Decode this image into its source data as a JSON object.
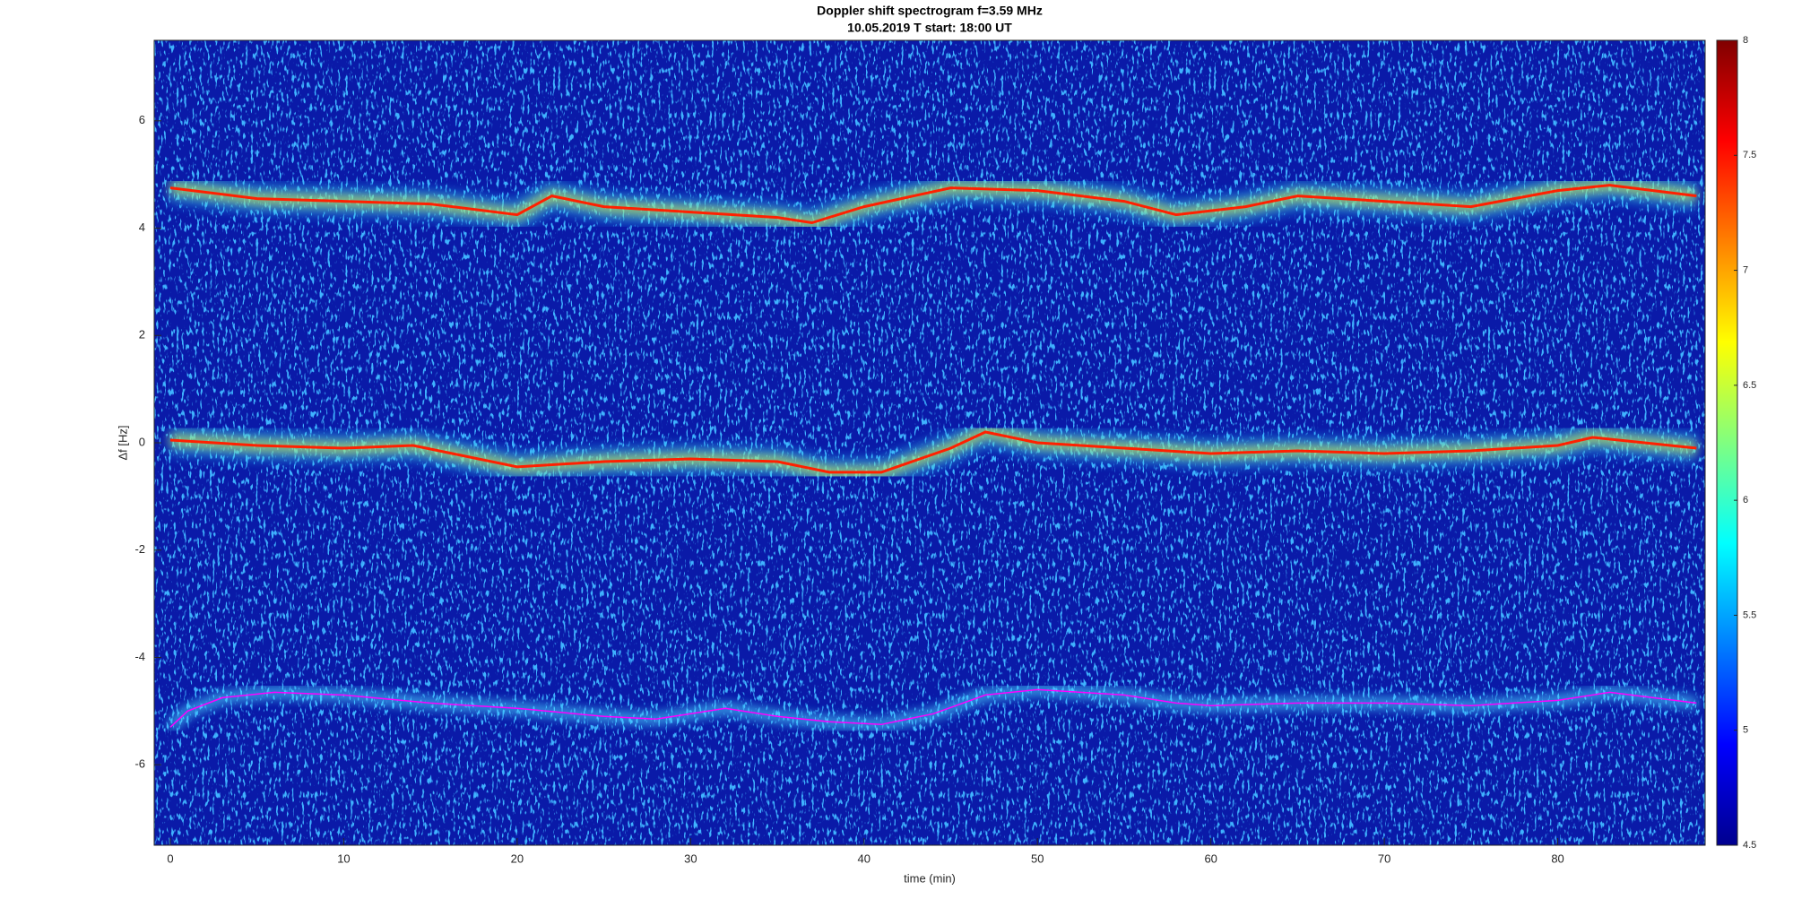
{
  "chart_data": {
    "type": "spectrogram",
    "title": "Doppler shift spectrogram f=3.59 MHz",
    "subtitle": "10.05.2019   T start: 18:00 UT",
    "x_label": "time (min)",
    "y_label": "Δf [Hz]",
    "xlim": [
      -0.93,
      88.5
    ],
    "ylim": [
      -7.5,
      7.5
    ],
    "xticks": [
      0,
      10,
      20,
      30,
      40,
      50,
      60,
      70,
      80
    ],
    "yticks": [
      -6,
      -4,
      -2,
      0,
      2,
      4,
      6
    ],
    "series": [
      {
        "color": "#ff2000",
        "x": [
          0,
          5,
          10,
          15,
          20,
          22,
          25,
          30,
          35,
          37,
          40,
          45,
          50,
          55,
          58,
          62,
          65,
          70,
          75,
          80,
          83,
          88
        ],
        "values": [
          4.75,
          4.55,
          4.5,
          4.45,
          4.25,
          4.6,
          4.4,
          4.3,
          4.2,
          4.1,
          4.4,
          4.75,
          4.7,
          4.5,
          4.25,
          4.4,
          4.6,
          4.5,
          4.4,
          4.7,
          4.8,
          4.6
        ]
      },
      {
        "color": "#ff2000",
        "x": [
          0,
          5,
          10,
          14,
          20,
          25,
          30,
          35,
          38,
          41,
          45,
          47,
          50,
          55,
          60,
          65,
          70,
          75,
          80,
          82,
          85,
          88
        ],
        "values": [
          0.05,
          -0.05,
          -0.1,
          -0.05,
          -0.45,
          -0.35,
          -0.3,
          -0.35,
          -0.55,
          -0.55,
          -0.1,
          0.2,
          0.0,
          -0.1,
          -0.2,
          -0.15,
          -0.2,
          -0.15,
          -0.05,
          0.1,
          0.0,
          -0.1
        ]
      },
      {
        "color": "#ff00ff",
        "x": [
          0,
          1,
          3,
          6,
          10,
          15,
          20,
          25,
          28,
          32,
          35,
          38,
          41,
          44,
          47,
          50,
          55,
          58,
          60,
          65,
          70,
          75,
          80,
          83,
          88
        ],
        "values": [
          -5.3,
          -5.0,
          -4.75,
          -4.65,
          -4.7,
          -4.85,
          -4.95,
          -5.1,
          -5.15,
          -4.95,
          -5.1,
          -5.2,
          -5.25,
          -5.05,
          -4.7,
          -4.6,
          -4.7,
          -4.85,
          -4.9,
          -4.85,
          -4.85,
          -4.9,
          -4.8,
          -4.65,
          -4.85
        ]
      }
    ],
    "colorbar": {
      "lim": [
        4.5,
        8
      ],
      "ticks": [
        4.5,
        5,
        5.5,
        6,
        6.5,
        7,
        7.5,
        8
      ],
      "colors": [
        "#00008f",
        "#0000ff",
        "#0080ff",
        "#00ffff",
        "#80ff80",
        "#ffff00",
        "#ff8000",
        "#ff0000",
        "#800000"
      ]
    }
  }
}
